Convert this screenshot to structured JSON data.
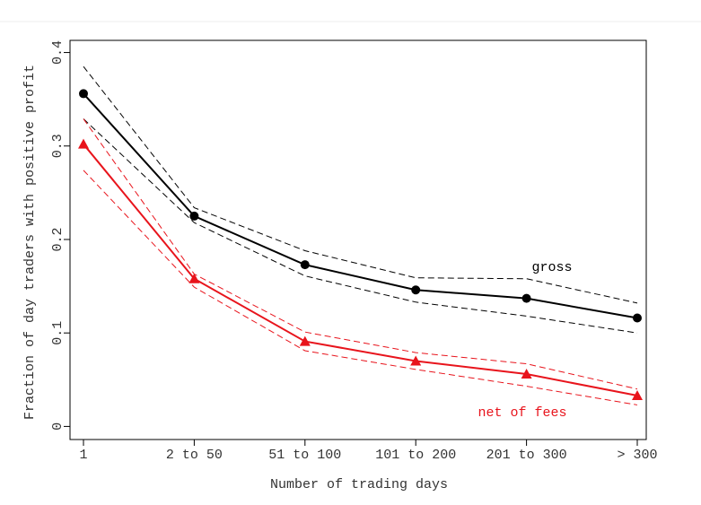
{
  "chart_data": {
    "type": "line",
    "xlabel": "Number of trading days",
    "ylabel": "Fraction of day traders with positive profit",
    "categories": [
      "1",
      "2 to 50",
      "51 to 100",
      "101 to 200",
      "201 to 300",
      "> 300"
    ],
    "ylim": [
      -0.014,
      0.413
    ],
    "yticks": [
      0,
      0.1,
      0.2,
      0.3,
      0.4
    ],
    "series": [
      {
        "name": "gross",
        "color": "#000000",
        "marker": "circle",
        "values": [
          0.356,
          0.225,
          0.173,
          0.146,
          0.137,
          0.116
        ],
        "upper": [
          0.385,
          0.234,
          0.188,
          0.159,
          0.158,
          0.132
        ],
        "lower": [
          0.329,
          0.218,
          0.161,
          0.133,
          0.118,
          0.1
        ]
      },
      {
        "name": "net of fees",
        "color": "#e8141c",
        "marker": "triangle",
        "values": [
          0.302,
          0.158,
          0.091,
          0.07,
          0.056,
          0.033
        ],
        "upper": [
          0.329,
          0.163,
          0.101,
          0.079,
          0.067,
          0.04
        ],
        "lower": [
          0.274,
          0.149,
          0.081,
          0.061,
          0.043,
          0.023
        ]
      }
    ]
  }
}
